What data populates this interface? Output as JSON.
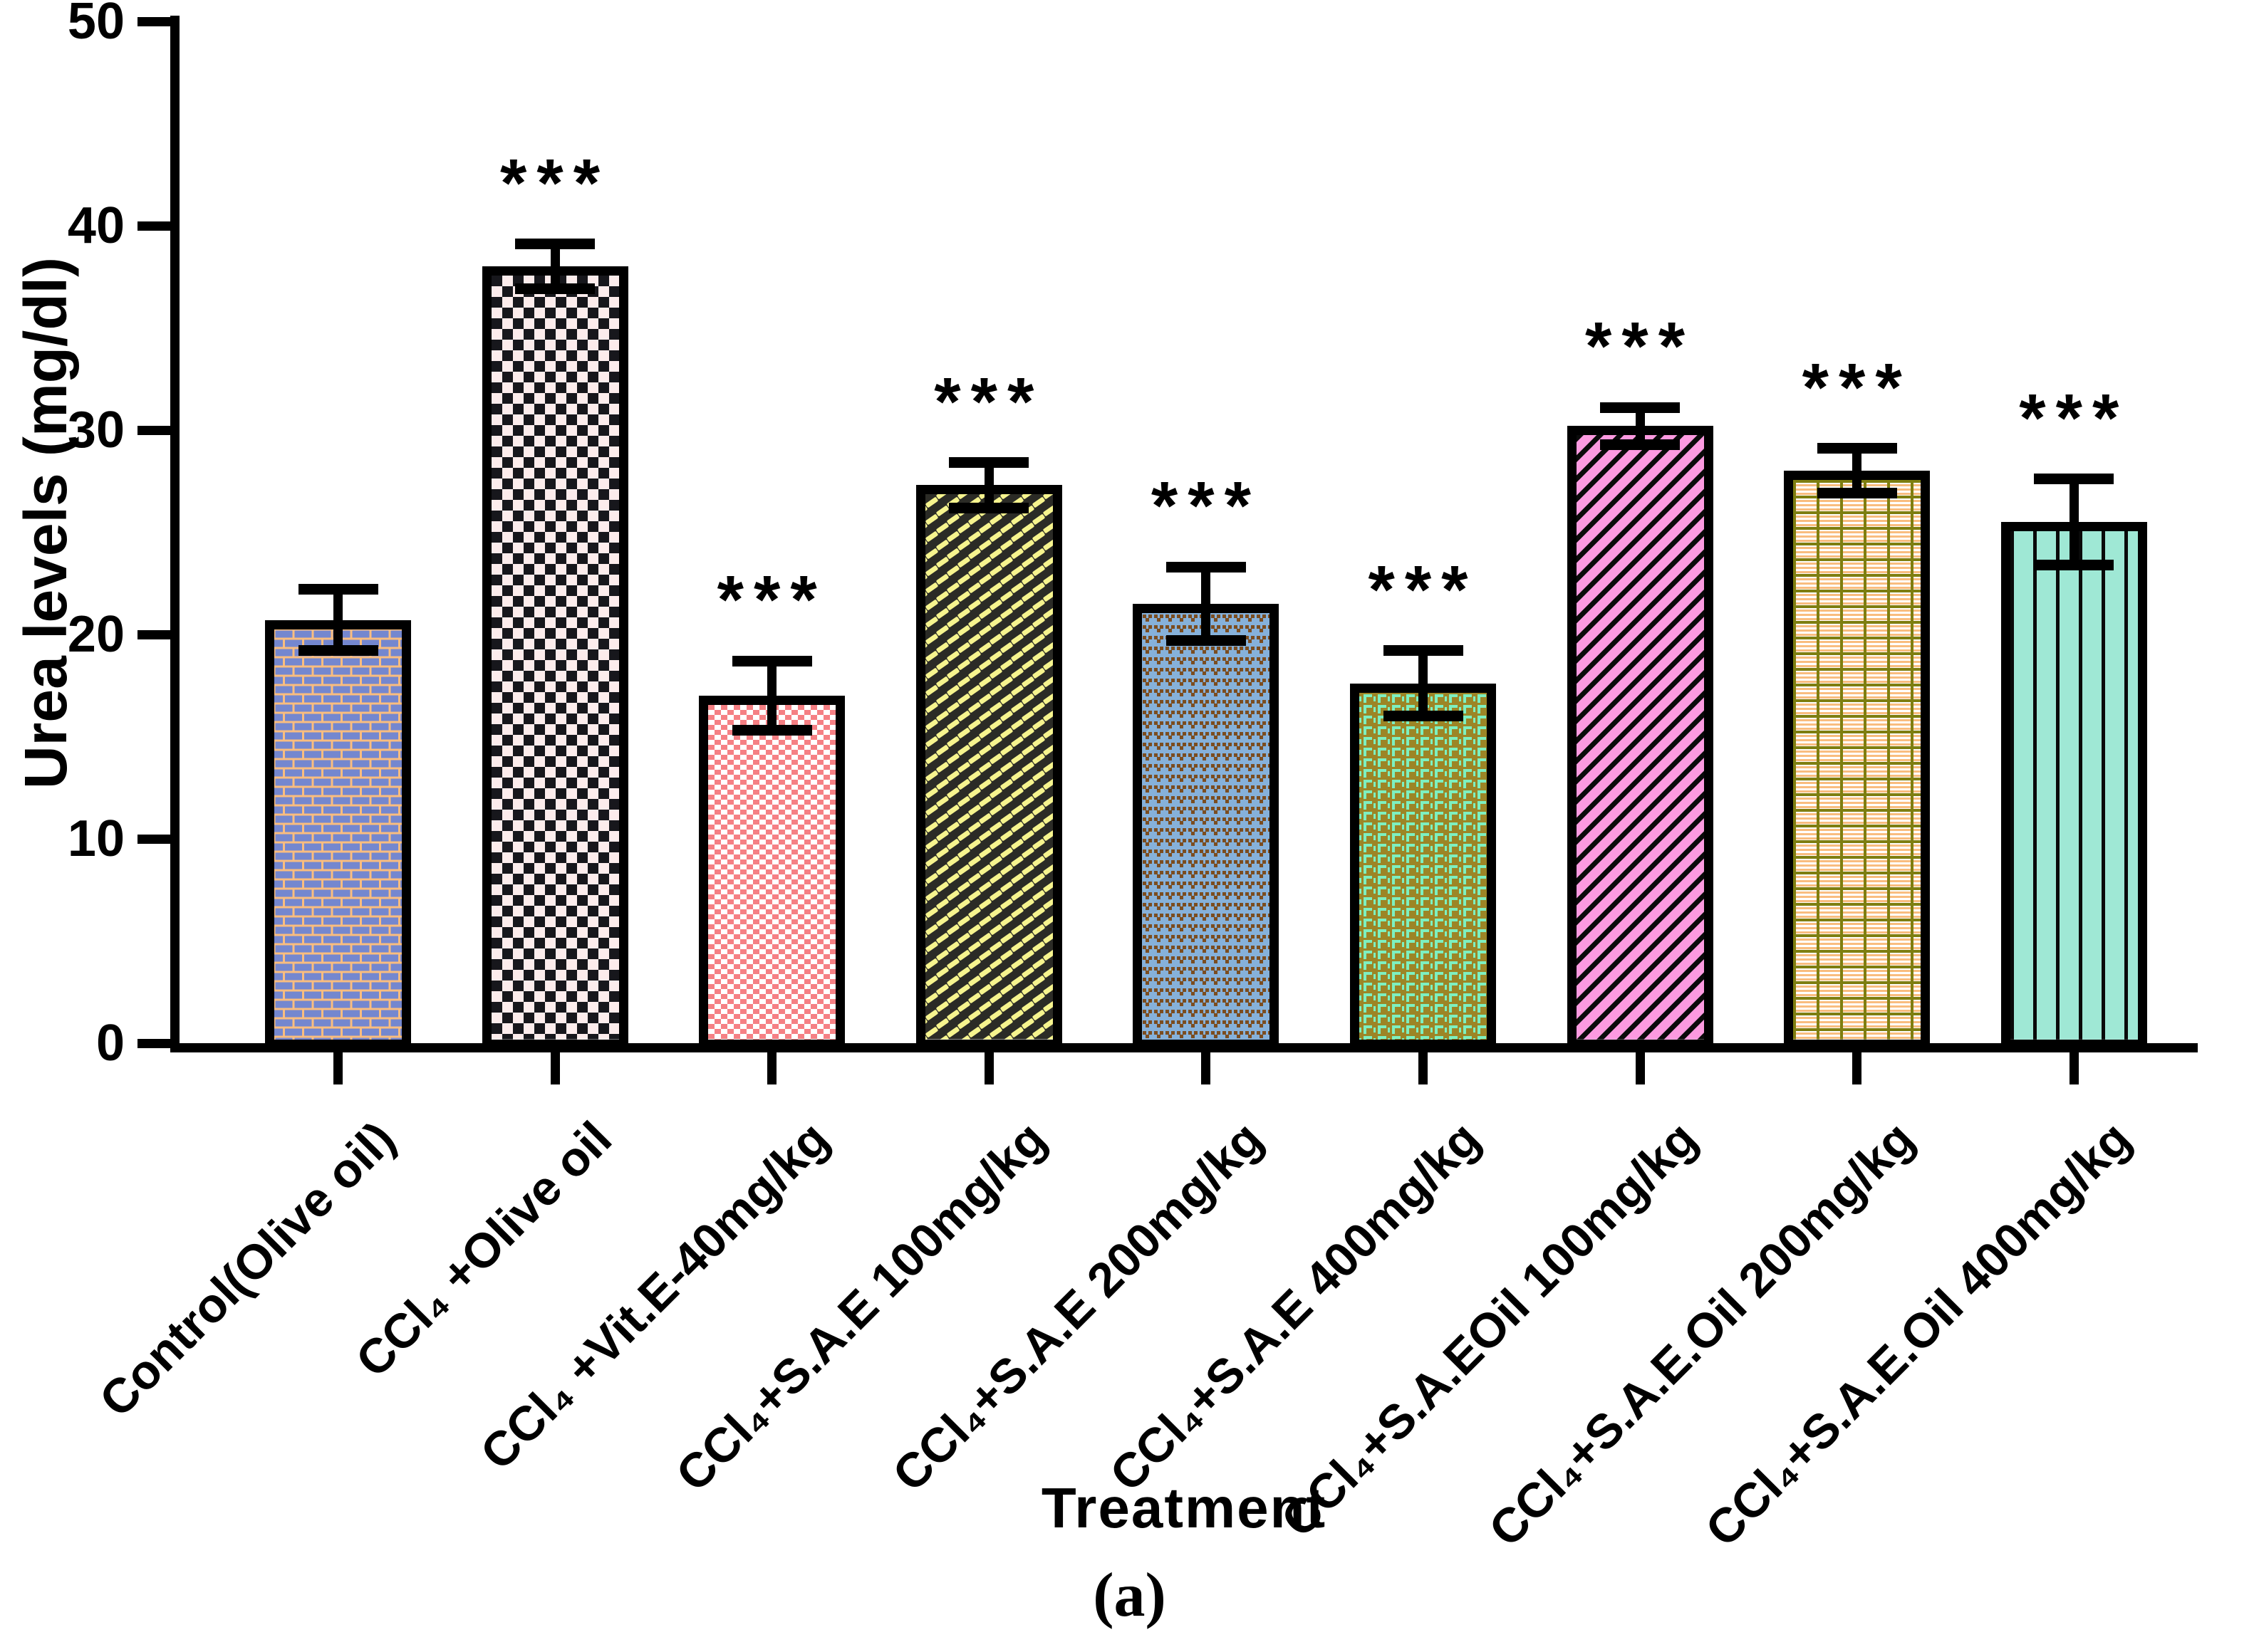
{
  "figure": {
    "background": "#ffffff",
    "axis_color": "#000000",
    "ylabel": "Urea levels (mg/dl)",
    "xlabel": "Treatment",
    "caption": "(a)"
  },
  "chart_data": {
    "type": "bar",
    "title": "",
    "xlabel": "Treatment",
    "ylabel": "Urea levels (mg/dl)",
    "ylim": [
      0,
      50
    ],
    "yticks": [
      0,
      10,
      20,
      30,
      40,
      50
    ],
    "grid": false,
    "legend": "none",
    "error_bars": true,
    "categories": [
      "Control(Olive oil)",
      "CCl₄ +Olive oil",
      "CCl₄ +Vit.E-40mg/kg",
      "CCl₄+S.A.E 100mg/kg",
      "CCl₄+S.A.E 200mg/kg",
      "CCl₄+S.A.E 400mg/kg",
      "CCl₄+S.A.EOil 100mg/kg",
      "CCl₄+S.A.E.Oil 200mg/kg",
      "CCl₄+S.A.E.Oil 400mg/kg"
    ],
    "values": [
      20.7,
      38.0,
      17.0,
      27.3,
      21.5,
      17.6,
      30.2,
      28.0,
      25.5
    ],
    "errors": [
      1.5,
      1.1,
      1.7,
      1.1,
      1.8,
      1.6,
      0.9,
      1.1,
      2.1
    ],
    "significance": [
      "",
      "***",
      "***",
      "***",
      "***",
      "***",
      "***",
      "***",
      "***"
    ],
    "bars": [
      {
        "pattern": "brick",
        "colors": [
          "#7487cf",
          "#f9bd7f"
        ]
      },
      {
        "pattern": "checkerboard-large",
        "colors": [
          "#17171c",
          "#fcecec"
        ]
      },
      {
        "pattern": "checkerboard-fine",
        "colors": [
          "#f58084",
          "#ffffff"
        ]
      },
      {
        "pattern": "diagonal-dash-weave",
        "colors": [
          "#f6f48e",
          "#2b2b26"
        ]
      },
      {
        "pattern": "chevron-dots",
        "colors": [
          "#7b4d20",
          "#86b1da"
        ]
      },
      {
        "pattern": "corner-brackets",
        "colors": [
          "#7df0c0",
          "#9c8526"
        ]
      },
      {
        "pattern": "diagonal-stripes",
        "colors": [
          "#0a0a0a",
          "#fc9ae0"
        ]
      },
      {
        "pattern": "grid-weave",
        "colors": [
          "#7e7e10",
          "#f9bd7f",
          "#ffffff"
        ]
      },
      {
        "pattern": "vertical-stripes",
        "colors": [
          "#0a0a0a",
          "#9fe8d5"
        ]
      }
    ]
  }
}
